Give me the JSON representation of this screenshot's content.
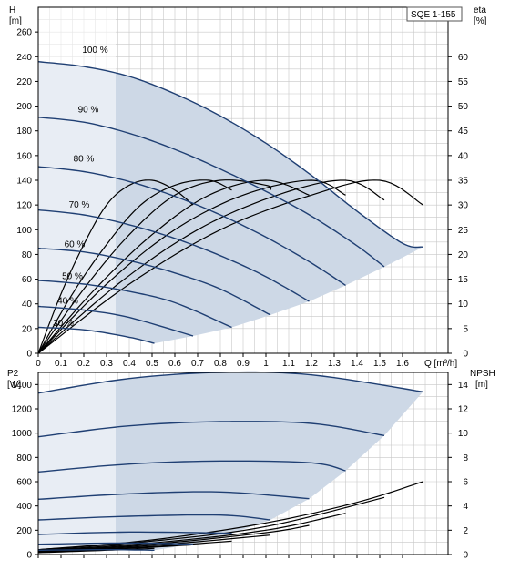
{
  "model_label": "SQE 1-155",
  "colors": {
    "operating_area": "#cdd8e6",
    "operating_area_light": "#e8f0fa",
    "pump_curve": "#1f3f73",
    "efficiency_curve": "#000000",
    "grid": "#c8c8c8"
  },
  "chart_data": [
    {
      "type": "line",
      "title": "",
      "xlabel": "Q [m³/h]",
      "ylabel": "H [m]",
      "y2label": "eta [%]",
      "unit_x_top": "H",
      "unit_x_bottom": "[m]",
      "unit_y2_top": "eta",
      "unit_y2_bottom": "[%]",
      "xlim": [
        0,
        1.8
      ],
      "ylim": [
        0,
        280
      ],
      "y2lim": [
        0,
        70
      ],
      "x_ticks": [
        0,
        0.1,
        0.2,
        0.3,
        0.4,
        0.5,
        0.6,
        0.7,
        0.8,
        0.9,
        1.0,
        1.1,
        1.2,
        1.3,
        1.4,
        1.5,
        1.6
      ],
      "y_ticks": [
        0,
        20,
        40,
        60,
        80,
        100,
        120,
        140,
        160,
        180,
        200,
        220,
        240,
        260
      ],
      "y2_ticks": [
        0,
        5,
        10,
        15,
        20,
        25,
        30,
        35,
        40,
        45,
        50,
        55,
        60
      ],
      "grid": true,
      "speed_labels": [
        "100 %",
        "90 %",
        "80 %",
        "70 %",
        "60 %",
        "50 %",
        "40 %",
        "30 %"
      ],
      "speed_label_positions": [
        [
          0.25,
          243
        ],
        [
          0.22,
          195
        ],
        [
          0.2,
          155
        ],
        [
          0.18,
          118
        ],
        [
          0.16,
          86
        ],
        [
          0.15,
          60
        ],
        [
          0.13,
          40
        ],
        [
          0.11,
          22
        ]
      ],
      "head_curves": [
        {
          "speed": "100 %",
          "q": [
            0,
            0.2,
            0.4,
            0.6,
            0.8,
            1.0,
            1.2,
            1.4,
            1.6,
            1.69
          ],
          "h": [
            236,
            232,
            224,
            210,
            192,
            170,
            144,
            115,
            89,
            86
          ]
        },
        {
          "speed": "90 %",
          "q": [
            0,
            0.2,
            0.4,
            0.6,
            0.8,
            1.0,
            1.2,
            1.4,
            1.52
          ],
          "h": [
            191,
            187,
            178,
            165,
            149,
            131,
            111,
            87,
            70
          ]
        },
        {
          "speed": "80 %",
          "q": [
            0,
            0.2,
            0.4,
            0.6,
            0.8,
            1.0,
            1.2,
            1.35
          ],
          "h": [
            151,
            147,
            139,
            127,
            112,
            94,
            73,
            55
          ]
        },
        {
          "speed": "70 %",
          "q": [
            0,
            0.2,
            0.4,
            0.6,
            0.8,
            1.0,
            1.19
          ],
          "h": [
            116,
            112,
            104,
            93,
            79,
            62,
            42
          ]
        },
        {
          "speed": "60 %",
          "q": [
            0,
            0.2,
            0.4,
            0.6,
            0.8,
            1.02
          ],
          "h": [
            85,
            82,
            75,
            65,
            52,
            31
          ]
        },
        {
          "speed": "50 %",
          "q": [
            0,
            0.2,
            0.4,
            0.6,
            0.85
          ],
          "h": [
            59,
            56,
            50,
            41,
            21
          ]
        },
        {
          "speed": "40 %",
          "q": [
            0,
            0.2,
            0.4,
            0.68
          ],
          "h": [
            38,
            35,
            29,
            14
          ]
        },
        {
          "speed": "30 %",
          "q": [
            0,
            0.2,
            0.4,
            0.51
          ],
          "h": [
            21,
            19,
            13,
            8
          ]
        }
      ],
      "efficiency_curves": [
        {
          "q": [
            0,
            0.1,
            0.2,
            0.3,
            0.4,
            0.5,
            0.6,
            0.68
          ],
          "eta": [
            0,
            12,
            22,
            30,
            34,
            35,
            33,
            30
          ]
        },
        {
          "q": [
            0,
            0.15,
            0.3,
            0.45,
            0.6,
            0.75,
            0.85
          ],
          "eta": [
            0,
            12,
            22,
            30,
            34,
            35,
            33
          ]
        },
        {
          "q": [
            0,
            0.2,
            0.4,
            0.6,
            0.8,
            1.0,
            1.02
          ],
          "eta": [
            0,
            13,
            24,
            32,
            35,
            34,
            33
          ]
        },
        {
          "q": [
            0,
            0.25,
            0.5,
            0.75,
            1.0,
            1.19
          ],
          "eta": [
            0,
            13,
            24,
            32,
            35,
            32
          ]
        },
        {
          "q": [
            0,
            0.3,
            0.6,
            0.9,
            1.2,
            1.35
          ],
          "eta": [
            0,
            14,
            25,
            32,
            35,
            32
          ]
        },
        {
          "q": [
            0,
            0.35,
            0.7,
            1.05,
            1.35,
            1.52
          ],
          "eta": [
            0,
            14,
            25,
            32,
            35,
            31
          ]
        },
        {
          "q": [
            0,
            0.4,
            0.8,
            1.2,
            1.5,
            1.69
          ],
          "eta": [
            0,
            14,
            25,
            32,
            35,
            30
          ]
        }
      ]
    },
    {
      "type": "line",
      "title": "",
      "xlabel": "",
      "ylabel": "P2 [W]",
      "y2label": "NPSH [m]",
      "unit_y_top": "P2",
      "unit_y_bottom": "[W]",
      "unit_y2_top": "NPSH",
      "unit_y2_bottom": "[m]",
      "xlim": [
        0,
        1.8
      ],
      "ylim": [
        0,
        1500
      ],
      "y2lim": [
        0,
        15
      ],
      "y_ticks": [
        0,
        200,
        400,
        600,
        800,
        1000,
        1200,
        1400
      ],
      "y2_ticks": [
        0,
        2,
        4,
        6,
        8,
        10,
        12,
        14
      ],
      "grid": true,
      "power_curves": [
        {
          "q": [
            0,
            0.4,
            0.8,
            1.2,
            1.69
          ],
          "p": [
            1330,
            1450,
            1500,
            1480,
            1340
          ]
        },
        {
          "q": [
            0,
            0.4,
            0.8,
            1.2,
            1.52
          ],
          "p": [
            970,
            1060,
            1095,
            1080,
            980
          ]
        },
        {
          "q": [
            0,
            0.4,
            0.8,
            1.2,
            1.35
          ],
          "p": [
            680,
            745,
            770,
            755,
            690
          ]
        },
        {
          "q": [
            0,
            0.4,
            0.8,
            1.19
          ],
          "p": [
            455,
            500,
            515,
            460
          ]
        },
        {
          "q": [
            0,
            0.4,
            0.8,
            1.02
          ],
          "p": [
            285,
            315,
            325,
            285
          ]
        },
        {
          "q": [
            0,
            0.4,
            0.85
          ],
          "p": [
            165,
            185,
            175
          ]
        },
        {
          "q": [
            0,
            0.4,
            0.68
          ],
          "p": [
            85,
            95,
            85
          ]
        },
        {
          "q": [
            0,
            0.3,
            0.51
          ],
          "p": [
            35,
            40,
            35
          ]
        }
      ],
      "npsh_curves": [
        {
          "q": [
            0,
            0.5,
            1.0,
            1.4,
            1.69
          ],
          "npsh": [
            0.4,
            1.2,
            2.6,
            4.3,
            6.0
          ]
        },
        {
          "q": [
            0,
            0.5,
            1.0,
            1.52
          ],
          "npsh": [
            0.4,
            1.1,
            2.3,
            4.7
          ]
        },
        {
          "q": [
            0,
            0.5,
            1.0,
            1.35
          ],
          "npsh": [
            0.35,
            0.95,
            2.0,
            3.4
          ]
        },
        {
          "q": [
            0,
            0.5,
            1.0,
            1.19
          ],
          "npsh": [
            0.3,
            0.85,
            1.8,
            2.4
          ]
        },
        {
          "q": [
            0,
            0.5,
            1.02
          ],
          "npsh": [
            0.3,
            0.75,
            1.6
          ]
        },
        {
          "q": [
            0,
            0.5,
            0.85
          ],
          "npsh": [
            0.25,
            0.65,
            1.1
          ]
        },
        {
          "q": [
            0,
            0.4,
            0.68
          ],
          "npsh": [
            0.2,
            0.5,
            0.8
          ]
        },
        {
          "q": [
            0,
            0.3,
            0.51
          ],
          "npsh": [
            0.15,
            0.35,
            0.5
          ]
        }
      ]
    }
  ]
}
